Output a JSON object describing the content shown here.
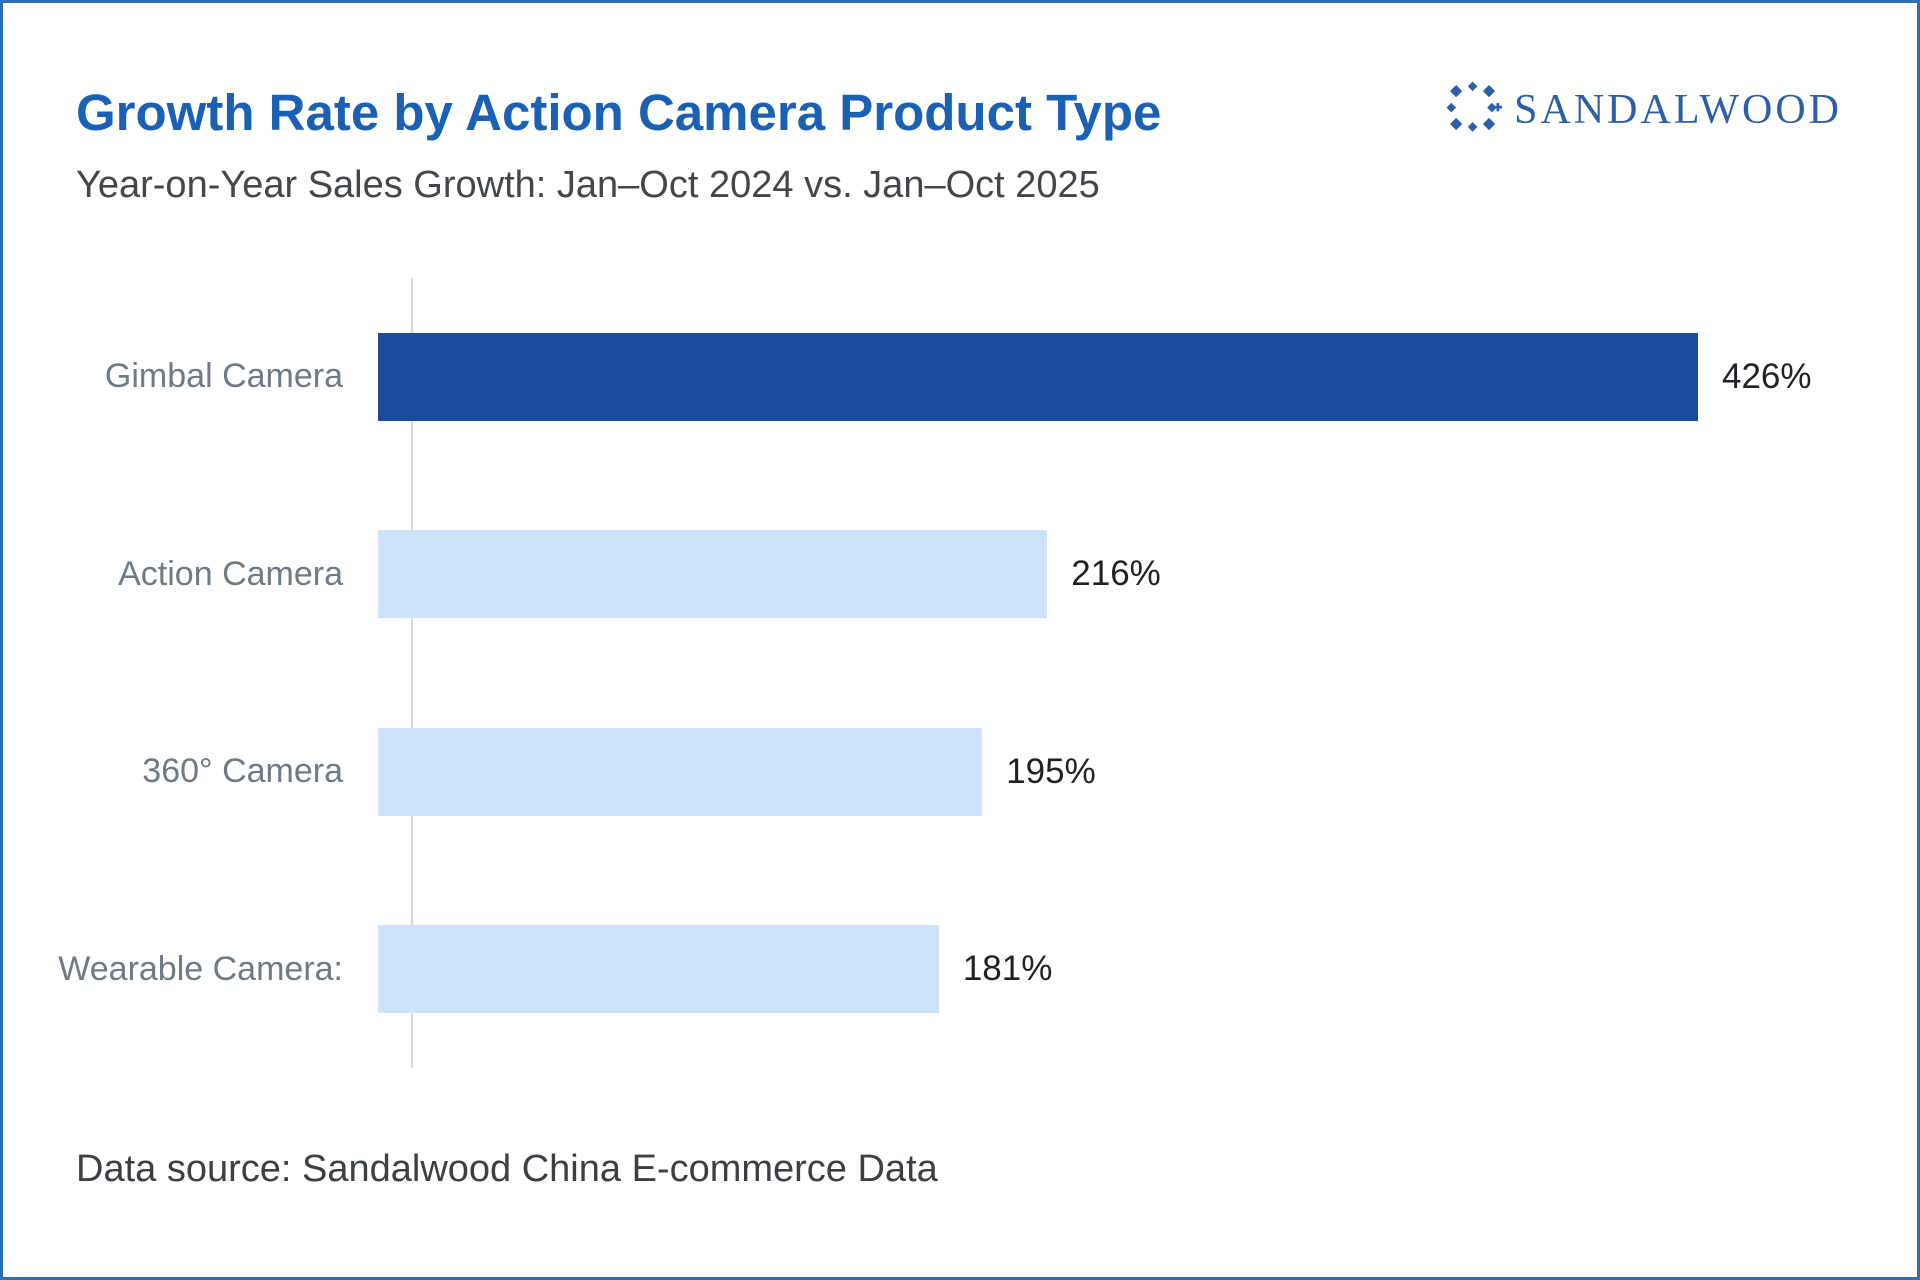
{
  "header": {
    "title": "Growth Rate by Action Camera Product Type",
    "subtitle": "Year-on-Year Sales Growth: Jan–Oct 2024 vs. Jan–Oct 2025"
  },
  "logo": {
    "wordmark": "SANDALWOOD"
  },
  "footer": {
    "source": "Data source: Sandalwood China E-commerce Data"
  },
  "colors": {
    "frame_border": "#2f6db8",
    "title_blue": "#1a60b5",
    "dark_bar": "#1a4a9e",
    "light_bar": "#cce3fa",
    "logo_blue": "#2d5fa8"
  },
  "chart_data": {
    "type": "bar",
    "orientation": "horizontal",
    "title": "Growth Rate by Action Camera Product Type",
    "subtitle": "Year-on-Year Sales Growth: Jan–Oct 2024 vs. Jan–Oct 2025",
    "xlabel": "",
    "ylabel": "",
    "grid": false,
    "legend": false,
    "xmax": 426,
    "categories": [
      "Gimbal Camera",
      "Action Camera",
      "360° Camera",
      "Wearable Camera:"
    ],
    "values": [
      426,
      216,
      195,
      181
    ],
    "value_labels": [
      "426%",
      "216%",
      "195%",
      "181%"
    ],
    "bar_colors": [
      "#1a4a9e",
      "#cce3fa",
      "#cce3fa",
      "#cce3fa"
    ]
  }
}
